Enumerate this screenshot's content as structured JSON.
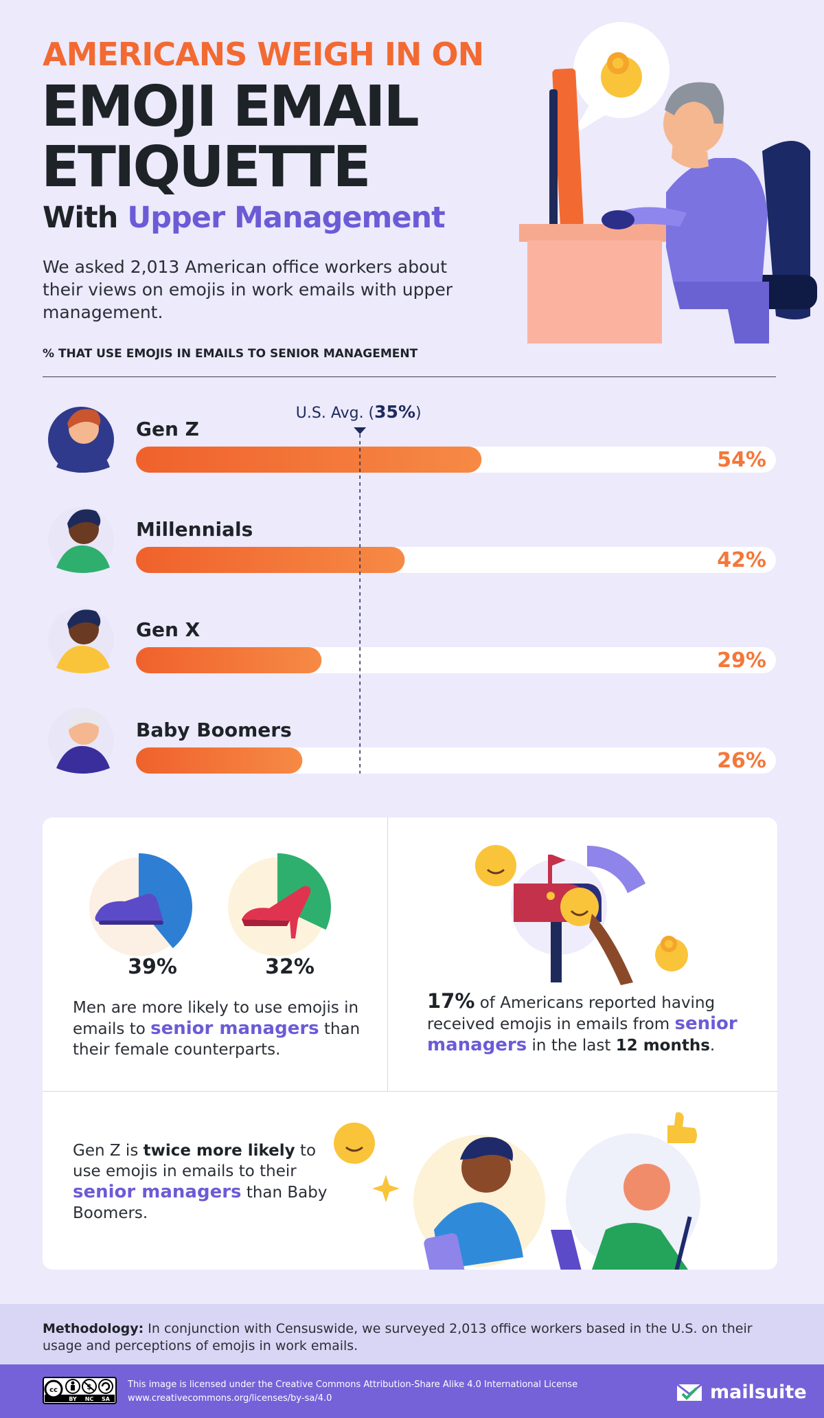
{
  "header": {
    "kicker": "AMERICANS WEIGH IN ON",
    "title_line1": "EMOJI EMAIL",
    "title_line2": "ETIQUETTE",
    "subtitle_prefix": "With",
    "subtitle_accent": "Upper Management",
    "intro": "We asked 2,013 American office workers about their views on emojis in work emails with upper management."
  },
  "chart_data": {
    "type": "bar",
    "title": "% THAT USE EMOJIS IN EMAILS TO SENIOR MANAGEMENT",
    "categories": [
      "Gen Z",
      "Millennials",
      "Gen X",
      "Baby Boomers"
    ],
    "values": [
      54,
      42,
      29,
      26
    ],
    "value_labels": [
      "54%",
      "42%",
      "29%",
      "26%"
    ],
    "xlim": [
      0,
      100
    ],
    "reference_line": {
      "value": 35,
      "label_prefix": "U.S.  Avg. (",
      "label_value": "35%",
      "label_suffix": ")"
    },
    "bar_color": "#F4773A",
    "track_color": "#FFFFFF",
    "label_color": "#F4773A"
  },
  "gender_stat": {
    "men_value": 39,
    "women_value": 32,
    "men_label": "39%",
    "women_label": "32%",
    "text_part1": "Men are more likely to use emojis in emails to ",
    "text_accent": "senior managers",
    "text_part2": " than their female counterparts."
  },
  "received_stat": {
    "value_label": "17%",
    "text_part1": " of Americans reported having received emojis in emails from ",
    "text_accent": "senior managers",
    "text_part2": " in the last ",
    "text_bold": "12 months",
    "text_part3": "."
  },
  "genz_stat": {
    "text_part1": "Gen Z is ",
    "text_bold": "twice more likely",
    "text_part2": " to use emojis in emails to their ",
    "text_accent": "senior managers",
    "text_part3": " than Baby Boomers."
  },
  "methodology": {
    "label": "Methodology:",
    "text": " In conjunction with Censuswide, we surveyed 2,013 office workers based in the U.S. on their usage and perceptions of emojis in work emails."
  },
  "footer": {
    "license_line1": "This image is licensed under the Creative Commons Attribution-Share Alike 4.0 International License",
    "license_line2": "www.creativecommons.org/licenses/by-sa/4.0",
    "cc_labels": [
      "BY",
      "NC",
      "SA"
    ],
    "brand": "mailsuite"
  },
  "colors": {
    "accent_purple": "#6B5BD6",
    "accent_orange": "#F26A32",
    "background": "#ECEAFB",
    "footer": "#7562D9"
  }
}
